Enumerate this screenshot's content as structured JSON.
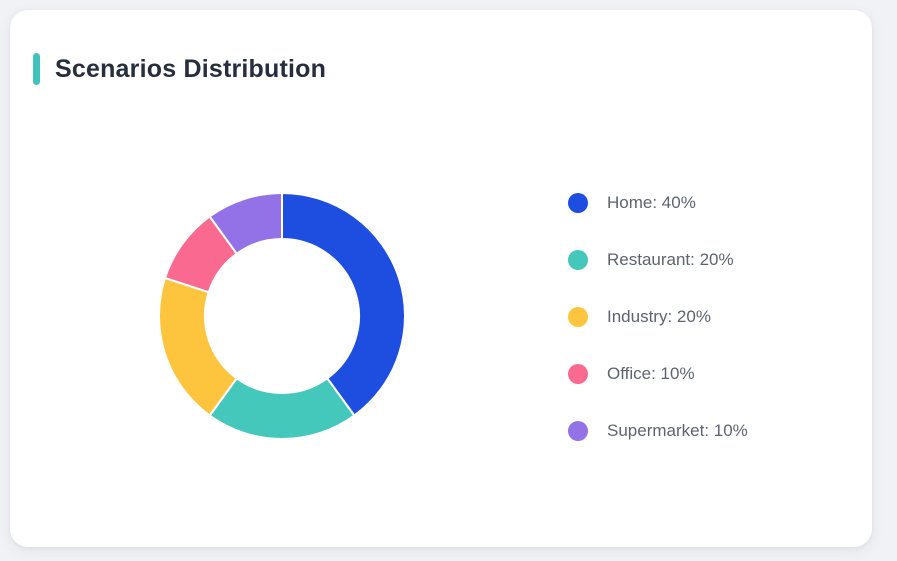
{
  "header": {
    "title": "Scenarios Distribution",
    "accent_color": "#3fc3bc"
  },
  "theme": {
    "page_background": "#f1f2f5",
    "card_background": "#ffffff",
    "title_color": "#262e3d",
    "legend_text_color": "#5d646f",
    "slice_gap_color": "#ffffff"
  },
  "chart_data": {
    "type": "pie",
    "title": "Scenarios Distribution",
    "donut": true,
    "inner_radius_ratio": 0.63,
    "start_angle_deg": -90,
    "direction": "clockwise",
    "legend_position": "right",
    "slices": [
      {
        "name": "Home",
        "value": 40,
        "color": "#1d4ee0"
      },
      {
        "name": "Restaurant",
        "value": 20,
        "color": "#45c8bc"
      },
      {
        "name": "Industry",
        "value": 20,
        "color": "#fdc53e"
      },
      {
        "name": "Office",
        "value": 10,
        "color": "#fa698f"
      },
      {
        "name": "Supermarket",
        "value": 10,
        "color": "#9372e7"
      }
    ],
    "label_format": "{name}: {value}%"
  }
}
